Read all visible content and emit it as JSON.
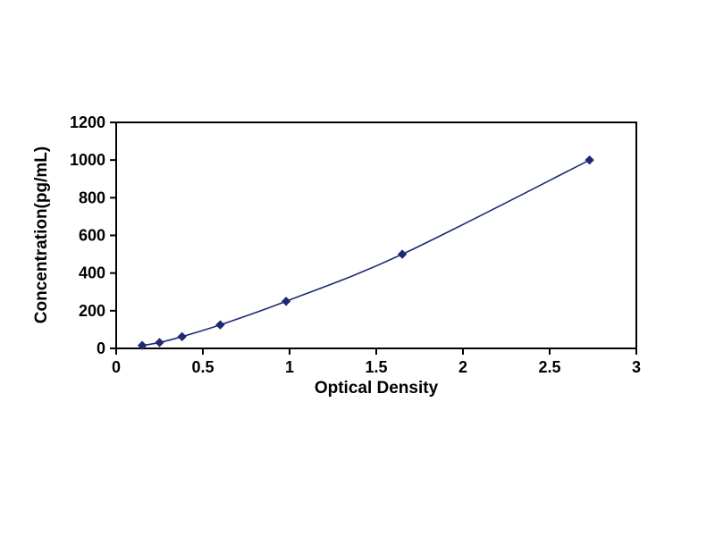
{
  "page": {
    "background": "#ffffff",
    "plot_box_color": "#000000"
  },
  "chart_data": {
    "type": "line",
    "title": "",
    "xlabel": "Optical Density",
    "ylabel": "Concentration(pg/mL)",
    "xlim": [
      0,
      3
    ],
    "ylim": [
      0,
      1200
    ],
    "grid": false,
    "legend": "none",
    "x_ticks": [
      0,
      0.5,
      1,
      1.5,
      2,
      2.5,
      3
    ],
    "x_tick_labels": [
      "0",
      "0.5",
      "1",
      "1.5",
      "2",
      "2.5",
      "3"
    ],
    "y_ticks": [
      0,
      200,
      400,
      600,
      800,
      1000,
      1200
    ],
    "y_tick_labels": [
      "0",
      "200",
      "400",
      "600",
      "800",
      "1000",
      "1200"
    ],
    "series": [
      {
        "name": "standard-curve",
        "marker": "diamond",
        "color": "#1f2a72",
        "x": [
          0.15,
          0.25,
          0.38,
          0.6,
          0.98,
          1.65,
          2.73
        ],
        "y": [
          15.6,
          31.2,
          62.5,
          125,
          250,
          500,
          1000
        ]
      }
    ]
  }
}
